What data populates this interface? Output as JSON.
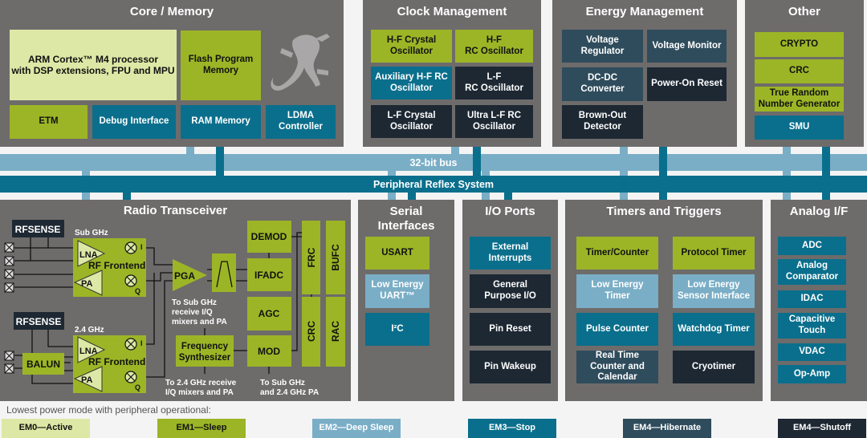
{
  "core": {
    "title": "Core / Memory",
    "arm": {
      "label": "ARM Cortex™ M4 processor\nwith DSP extensions, FPU and MPU",
      "mode": "EM0"
    },
    "flash": {
      "label": "Flash Program\nMemory",
      "mode": "EM1"
    },
    "etm": {
      "label": "ETM",
      "mode": "EM1"
    },
    "debug": {
      "label": "Debug Interface",
      "mode": "EM3"
    },
    "ram": {
      "label": "RAM Memory",
      "mode": "EM3"
    },
    "ldma": {
      "label": "LDMA\nController",
      "mode": "EM3"
    }
  },
  "clock": {
    "title": "Clock Management",
    "items": [
      {
        "label": "H-F Crystal\nOscillator",
        "mode": "EM1"
      },
      {
        "label": "H-F\nRC Oscillator",
        "mode": "EM1"
      },
      {
        "label": "Auxiliary H-F RC\nOscillator",
        "mode": "EM3"
      },
      {
        "label": "L-F\nRC Oscillator",
        "mode": "EM4S"
      },
      {
        "label": "L-F Crystal\nOscillator",
        "mode": "EM4S"
      },
      {
        "label": "Ultra L-F RC\nOscillator",
        "mode": "EM4S"
      }
    ]
  },
  "energy": {
    "title": "Energy Management",
    "items": [
      {
        "label": "Voltage\nRegulator",
        "mode": "EM4H"
      },
      {
        "label": "Voltage Monitor",
        "mode": "EM4H"
      },
      {
        "label": "DC-DC\nConverter",
        "mode": "EM4H"
      },
      {
        "label": "Power-On Reset",
        "mode": "EM4S"
      },
      {
        "label": "Brown-Out\nDetector",
        "mode": "EM4S"
      }
    ]
  },
  "other": {
    "title": "Other",
    "items": [
      {
        "label": "CRYPTO",
        "mode": "EM1"
      },
      {
        "label": "CRC",
        "mode": "EM1"
      },
      {
        "label": "True Random\nNumber Generator",
        "mode": "EM1"
      },
      {
        "label": "SMU",
        "mode": "EM3"
      }
    ]
  },
  "bus": {
    "main": "32-bit bus",
    "prs": "Peripheral Reflex System"
  },
  "radio": {
    "title": "Radio Transceiver",
    "rfsense": "RFSENSE",
    "sub_ghz": "Sub GHz",
    "ghz24": "2.4 GHz",
    "lna": "LNA",
    "pa": "PA",
    "rf_frontend": "RF Frontend",
    "i": "I",
    "q": "Q",
    "balun": "BALUN",
    "pga": "PGA",
    "demod": "DEMOD",
    "ifadc": "IFADC",
    "agc": "AGC",
    "mod": "MOD",
    "frc": "FRC",
    "bufc": "BUFC",
    "crc": "CRC",
    "rac": "RAC",
    "freq_synth": [
      "Frequency",
      "Synthesizer"
    ],
    "note_sub": [
      "To Sub GHz",
      "receive I/Q",
      "mixers and PA"
    ],
    "note_24": [
      "To 2.4 GHz receive",
      "I/Q mixers and PA"
    ],
    "note_pa": [
      "To Sub GHz",
      "and 2.4 GHz PA"
    ]
  },
  "serial": {
    "title": "Serial\nInterfaces",
    "items": [
      {
        "label": "USART",
        "mode": "EM1"
      },
      {
        "label": "Low Energy\nUART™",
        "mode": "EM2"
      },
      {
        "label": "I²C",
        "mode": "EM3"
      }
    ]
  },
  "io": {
    "title": "I/O Ports",
    "items": [
      {
        "label": "External\nInterrupts",
        "mode": "EM3"
      },
      {
        "label": "General\nPurpose I/O",
        "mode": "EM4S"
      },
      {
        "label": "Pin Reset",
        "mode": "EM4S"
      },
      {
        "label": "Pin Wakeup",
        "mode": "EM4S"
      }
    ]
  },
  "timers": {
    "title": "Timers and Triggers",
    "items": [
      {
        "label": "Timer/Counter",
        "mode": "EM1"
      },
      {
        "label": "Protocol Timer",
        "mode": "EM1"
      },
      {
        "label": "Low Energy\nTimer",
        "mode": "EM2"
      },
      {
        "label": "Low Energy\nSensor Interface",
        "mode": "EM2"
      },
      {
        "label": "Pulse Counter",
        "mode": "EM3"
      },
      {
        "label": "Watchdog Timer",
        "mode": "EM3"
      },
      {
        "label": "Real Time\nCounter and\nCalendar",
        "mode": "EM4H"
      },
      {
        "label": "Cryotimer",
        "mode": "EM4S"
      }
    ]
  },
  "analog": {
    "title": "Analog I/F",
    "items": [
      {
        "label": "ADC",
        "mode": "EM3"
      },
      {
        "label": "Analog\nComparator",
        "mode": "EM3"
      },
      {
        "label": "IDAC",
        "mode": "EM3"
      },
      {
        "label": "Capacitive\nTouch",
        "mode": "EM3"
      },
      {
        "label": "VDAC",
        "mode": "EM3"
      },
      {
        "label": "Op-Amp",
        "mode": "EM3"
      }
    ]
  },
  "legend": {
    "title": "Lowest power mode with peripheral operational:",
    "items": [
      {
        "label": "EM0—Active",
        "mode": "EM0"
      },
      {
        "label": "EM1—Sleep",
        "mode": "EM1"
      },
      {
        "label": "EM2—Deep Sleep",
        "mode": "EM2"
      },
      {
        "label": "EM3—Stop",
        "mode": "EM3"
      },
      {
        "label": "EM4—Hibernate",
        "mode": "EM4H"
      },
      {
        "label": "EM4—Shutoff",
        "mode": "EM4S"
      }
    ]
  },
  "colors": {
    "EM0": "#dde8a6",
    "EM1": "#9cb526",
    "EM2": "#7aaec6",
    "EM3": "#0a6f8c",
    "EM4H": "#2f4c5c",
    "EM4S": "#1d2833",
    "panel": "#6e6b6b"
  }
}
